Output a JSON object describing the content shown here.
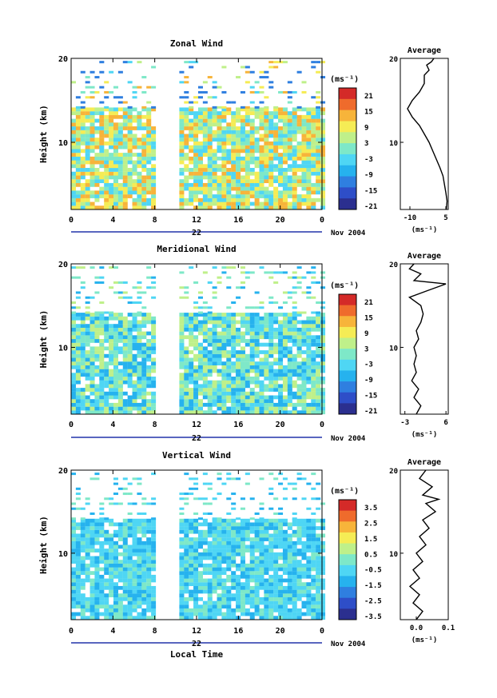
{
  "chart_data": [
    {
      "type": "heatmap",
      "title": "Zonal Wind",
      "ylabel": "Height (km)",
      "ylim": [
        2,
        20
      ],
      "xlim": [
        0,
        24
      ],
      "x_ticks": [
        "0",
        "4",
        "8",
        "12",
        "16",
        "20",
        "0"
      ],
      "y_ticks": [
        "20",
        "10"
      ],
      "day_label": "22",
      "date_label": "Nov 2004",
      "colorbar": {
        "unit": "(ms⁻¹)",
        "ticks": [
          "21",
          "15",
          "9",
          "3",
          "-3",
          "-9",
          "-15",
          "-21"
        ],
        "range": [
          -24,
          24
        ]
      },
      "data_gap_hours": [
        [
          8,
          10.2
        ]
      ],
      "profile": {
        "title": "Average",
        "xlabel": "(ms⁻¹)",
        "x_ticks": [
          "-10",
          "5"
        ],
        "x_tick_values": [
          -10,
          5
        ],
        "xlim": [
          -14,
          6
        ],
        "y_ticks": [
          "20",
          "10"
        ],
        "points": [
          [
            5.2,
            2
          ],
          [
            5.5,
            3
          ],
          [
            5,
            4
          ],
          [
            4.4,
            5
          ],
          [
            3.8,
            6
          ],
          [
            2.5,
            7
          ],
          [
            1,
            8
          ],
          [
            -0.5,
            9
          ],
          [
            -2,
            10
          ],
          [
            -4,
            11
          ],
          [
            -6,
            12
          ],
          [
            -9,
            13
          ],
          [
            -11,
            14
          ],
          [
            -9,
            15
          ],
          [
            -6,
            16
          ],
          [
            -4,
            17
          ],
          [
            -4,
            18
          ],
          [
            -2,
            18.6
          ],
          [
            -3,
            19.2
          ],
          [
            -1,
            19.6
          ],
          [
            0,
            20
          ]
        ]
      }
    },
    {
      "type": "heatmap",
      "title": "Meridional Wind",
      "ylabel": "Height (km)",
      "ylim": [
        2,
        20
      ],
      "xlim": [
        0,
        24
      ],
      "x_ticks": [
        "0",
        "4",
        "8",
        "12",
        "16",
        "20",
        "0"
      ],
      "y_ticks": [
        "20",
        "10"
      ],
      "day_label": "22",
      "date_label": "Nov 2004",
      "colorbar": {
        "unit": "(ms⁻¹)",
        "ticks": [
          "21",
          "15",
          "9",
          "3",
          "-3",
          "-9",
          "-15",
          "-21"
        ],
        "range": [
          -24,
          24
        ]
      },
      "data_gap_hours": [
        [
          8,
          10.2
        ]
      ],
      "profile": {
        "title": "Average",
        "xlabel": "(ms⁻¹)",
        "x_ticks": [
          "-3",
          "6"
        ],
        "x_tick_values": [
          -3,
          6
        ],
        "xlim": [
          -4,
          6.5
        ],
        "y_ticks": [
          "20",
          "10"
        ],
        "points": [
          [
            -0.5,
            2
          ],
          [
            0.5,
            3
          ],
          [
            -1,
            4
          ],
          [
            0,
            5
          ],
          [
            -1.5,
            6
          ],
          [
            -0.5,
            7
          ],
          [
            -1,
            8
          ],
          [
            -0.5,
            9
          ],
          [
            -1,
            10
          ],
          [
            0,
            11
          ],
          [
            -0.5,
            12
          ],
          [
            0.5,
            13
          ],
          [
            1,
            14
          ],
          [
            0.5,
            15
          ],
          [
            -2,
            16
          ],
          [
            2,
            16.8
          ],
          [
            6,
            17.6
          ],
          [
            -1,
            18
          ],
          [
            0.5,
            18.8
          ],
          [
            -2,
            19.4
          ],
          [
            -1,
            20
          ]
        ]
      }
    },
    {
      "type": "heatmap",
      "title": "Vertical Wind",
      "ylabel": "Height (km)",
      "xlabel": "Local Time",
      "ylim": [
        2,
        20
      ],
      "xlim": [
        0,
        24
      ],
      "x_ticks": [
        "0",
        "4",
        "8",
        "12",
        "16",
        "20",
        "0"
      ],
      "y_ticks": [
        "20",
        "10"
      ],
      "day_label": "22",
      "date_label": "Nov 2004",
      "colorbar": {
        "unit": "(ms⁻¹)",
        "ticks": [
          "3.5",
          "2.5",
          "1.5",
          "0.5",
          "-0.5",
          "-1.5",
          "-2.5",
          "-3.5"
        ],
        "range": [
          -4,
          4
        ]
      },
      "data_gap_hours": [
        [
          8,
          10.2
        ]
      ],
      "profile": {
        "title": "Average",
        "xlabel": "(ms⁻¹)",
        "x_ticks": [
          "0.0",
          "0.1"
        ],
        "x_tick_values": [
          0.0,
          0.1
        ],
        "xlim": [
          -0.05,
          0.1
        ],
        "y_ticks": [
          "20",
          "10"
        ],
        "points": [
          [
            0,
            2
          ],
          [
            0.02,
            3
          ],
          [
            -0.01,
            4
          ],
          [
            0.01,
            5
          ],
          [
            -0.02,
            6
          ],
          [
            0.01,
            7
          ],
          [
            -0.01,
            8
          ],
          [
            0.02,
            9
          ],
          [
            0,
            10
          ],
          [
            0.03,
            11
          ],
          [
            0.01,
            12
          ],
          [
            0.04,
            13
          ],
          [
            0.02,
            14
          ],
          [
            0.06,
            15
          ],
          [
            0.03,
            16
          ],
          [
            0.07,
            16.5
          ],
          [
            0.02,
            17
          ],
          [
            0.05,
            18
          ],
          [
            0.01,
            19
          ],
          [
            0.03,
            20
          ]
        ]
      }
    }
  ]
}
